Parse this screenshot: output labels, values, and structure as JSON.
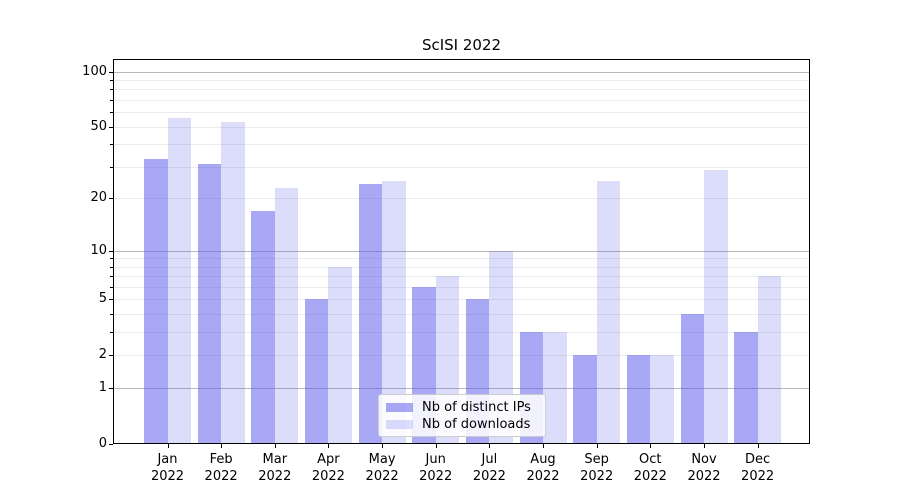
{
  "title": "ScISI 2022",
  "chart_data": {
    "type": "bar",
    "title": "ScISI 2022",
    "categories": [
      "Jan 2022",
      "Feb 2022",
      "Mar 2022",
      "Apr 2022",
      "May 2022",
      "Jun 2022",
      "Jul 2022",
      "Aug 2022",
      "Sep 2022",
      "Oct 2022",
      "Nov 2022",
      "Dec 2022"
    ],
    "series": [
      {
        "name": "Nb of distinct IPs",
        "color": "rgba(88,88,235,0.52)",
        "values": [
          33,
          31,
          17,
          5,
          24,
          6,
          5,
          3,
          2,
          2,
          4,
          3
        ]
      },
      {
        "name": "Nb of downloads",
        "color": "rgba(88,88,235,0.21)",
        "values": [
          56,
          53,
          23,
          8,
          25,
          7,
          10,
          3,
          25,
          2,
          29,
          7
        ]
      }
    ],
    "xlabel": "",
    "ylabel": "",
    "yscale": "log1p",
    "ylim": [
      0,
      117
    ],
    "yticks": [
      0,
      1,
      2,
      5,
      10,
      20,
      50,
      100
    ],
    "yticks_minor": [
      2,
      3,
      4,
      5,
      6,
      7,
      8,
      9,
      20,
      30,
      40,
      50,
      60,
      70,
      80,
      90
    ],
    "grid_major_values": [
      1,
      10,
      100
    ],
    "grid": "horizontal",
    "legend_position": "lower center",
    "colors": {
      "grid_major": "#b8b8b8",
      "grid_minor": "#ebebeb",
      "spine": "#000000",
      "background": "#ffffff"
    }
  }
}
